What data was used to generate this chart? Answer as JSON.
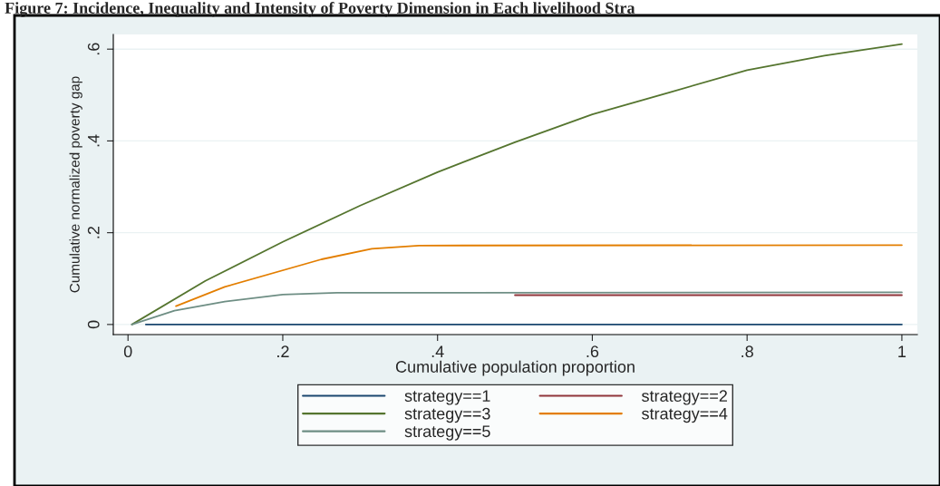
{
  "chart_data": {
    "type": "line",
    "title": "Figure 7: Incidence, Inequality and Intensity of Poverty Dimension in Each livelihood Stra",
    "xlabel": "Cumulative population proportion",
    "ylabel": "Cumulative normalized poverty gap",
    "xlim": [
      -0.019,
      1.02
    ],
    "ylim": [
      -0.022,
      0.632
    ],
    "xticks": [
      0,
      {
        "value": 0.2,
        "label": ".2"
      },
      {
        "value": 0.4,
        "label": ".4"
      },
      {
        "value": 0.6,
        "label": ".6"
      },
      {
        "value": 0.8,
        "label": ".8"
      },
      1
    ],
    "yticks": [
      0,
      {
        "value": 0.2,
        "label": ".2"
      },
      {
        "value": 0.4,
        "label": ".4"
      },
      {
        "value": 0.6,
        "label": ".6"
      }
    ],
    "grid": "y",
    "legend": "bottom",
    "marker": "none",
    "line_style": "solid",
    "series": [
      {
        "name": "strategy==1",
        "color": "#1a476f",
        "x": [
          0.023,
          1.0
        ],
        "values": [
          0,
          0
        ]
      },
      {
        "name": "strategy==2",
        "color": "#90353b",
        "x": [
          0.5,
          1.0
        ],
        "values": [
          0.064,
          0.064
        ]
      },
      {
        "name": "strategy==3",
        "color": "#55752f",
        "x": [
          0.005,
          0.1,
          0.2,
          0.3,
          0.4,
          0.5,
          0.6,
          0.7,
          0.8,
          0.9,
          1.0
        ],
        "values": [
          0,
          0.095,
          0.18,
          0.259,
          0.332,
          0.397,
          0.458,
          0.506,
          0.554,
          0.586,
          0.611
        ]
      },
      {
        "name": "strategy==4",
        "color": "#e37e00",
        "x": [
          0.062,
          0.125,
          0.25,
          0.315,
          0.376,
          1.0
        ],
        "values": [
          0.04,
          0.082,
          0.142,
          0.165,
          0.172,
          0.173
        ]
      },
      {
        "name": "strategy==5",
        "color": "#6e8e84",
        "x": [
          0.005,
          0.06,
          0.125,
          0.2,
          0.27,
          1.0
        ],
        "values": [
          0,
          0.03,
          0.05,
          0.065,
          0.069,
          0.07
        ]
      }
    ]
  }
}
